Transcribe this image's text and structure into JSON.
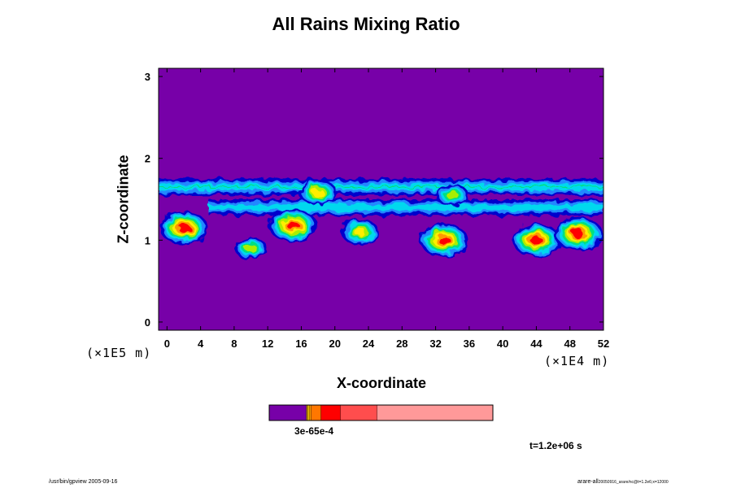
{
  "chart_data": {
    "type": "heatmap",
    "title": "All Rains Mixing Ratio",
    "xlabel": "X-coordinate",
    "ylabel": "Z-coordinate",
    "x_unit": "(×1E4 m)",
    "y_unit": "(×1E5 m)",
    "xlim": [
      -1,
      52
    ],
    "ylim": [
      -0.1,
      3.1
    ],
    "x_ticks": [
      "0",
      "4",
      "8",
      "12",
      "16",
      "20",
      "24",
      "28",
      "32",
      "36",
      "40",
      "44",
      "48",
      "52"
    ],
    "y_ticks": [
      "0",
      "1",
      "2",
      "3"
    ],
    "background_color": "#7700a8",
    "colors": [
      "#7700a8",
      "#0000cc",
      "#2288ff",
      "#00d8ee",
      "#00e080",
      "#aaee00",
      "#ffee00",
      "#ff9900",
      "#ff0000"
    ],
    "rain_band_top": {
      "x_range": [
        -1,
        52
      ],
      "z_range": [
        1.55,
        1.75
      ]
    },
    "rain_band_mid": {
      "x_range": [
        5,
        52
      ],
      "z_range": [
        1.3,
        1.5
      ]
    },
    "cores": [
      {
        "x": 2,
        "z": 1.15,
        "level": 8
      },
      {
        "x": 15,
        "z": 1.18,
        "level": 8
      },
      {
        "x": 18,
        "z": 1.58,
        "level": 6
      },
      {
        "x": 23,
        "z": 1.1,
        "level": 6
      },
      {
        "x": 33,
        "z": 1.0,
        "level": 8
      },
      {
        "x": 34,
        "z": 1.55,
        "level": 5
      },
      {
        "x": 44,
        "z": 1.0,
        "level": 8
      },
      {
        "x": 49,
        "z": 1.08,
        "level": 8
      },
      {
        "x": 10,
        "z": 0.9,
        "level": 5
      }
    ]
  },
  "colorbar": {
    "label": "3e-65e-4",
    "segments": [
      {
        "color": "#7700a8",
        "frac": 0.167
      },
      {
        "color": "#cc9900",
        "frac": 0.007
      },
      {
        "color": "#ffcc00",
        "frac": 0.007
      },
      {
        "color": "#ff9900",
        "frac": 0.007
      },
      {
        "color": "#ff7700",
        "frac": 0.044
      },
      {
        "color": "#ff0000",
        "frac": 0.087
      },
      {
        "color": "#ff4d4d",
        "frac": 0.164
      },
      {
        "color": "#ff9999",
        "frac": 0.517
      }
    ]
  },
  "time_label": "t=1.2e+06 s",
  "footer_left": "/usr/bin/gpview 2005-09-16",
  "footer_right": "arare-all",
  "footer_right_sub": "20050916_arare/nc@t=1.2e6;x=12000"
}
